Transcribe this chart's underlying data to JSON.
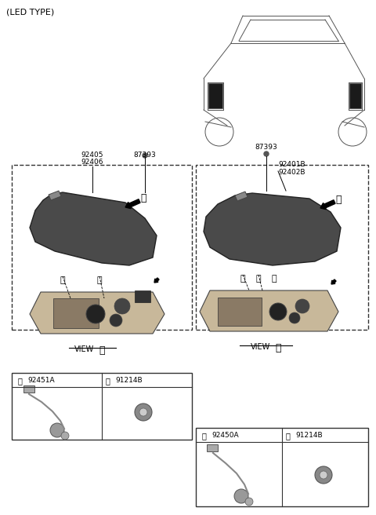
{
  "title": "(LED TYPE)",
  "bg_color": "#ffffff",
  "text_color": "#000000",
  "part_numbers_left": [
    "92405",
    "92406",
    "87393"
  ],
  "part_numbers_right": [
    "87393",
    "92401B",
    "92402B"
  ],
  "view_a_label": "VIEW",
  "view_b_label": "VIEW",
  "table_a_items": [
    {
      "circle": "a",
      "part": "92451A"
    },
    {
      "circle": "b",
      "part": "91214B"
    }
  ],
  "table_b_items": [
    {
      "circle": "c",
      "part": "92450A"
    },
    {
      "circle": "d",
      "part": "91214B"
    }
  ],
  "font_size_label": 7,
  "font_size_part": 7,
  "font_size_title": 8
}
